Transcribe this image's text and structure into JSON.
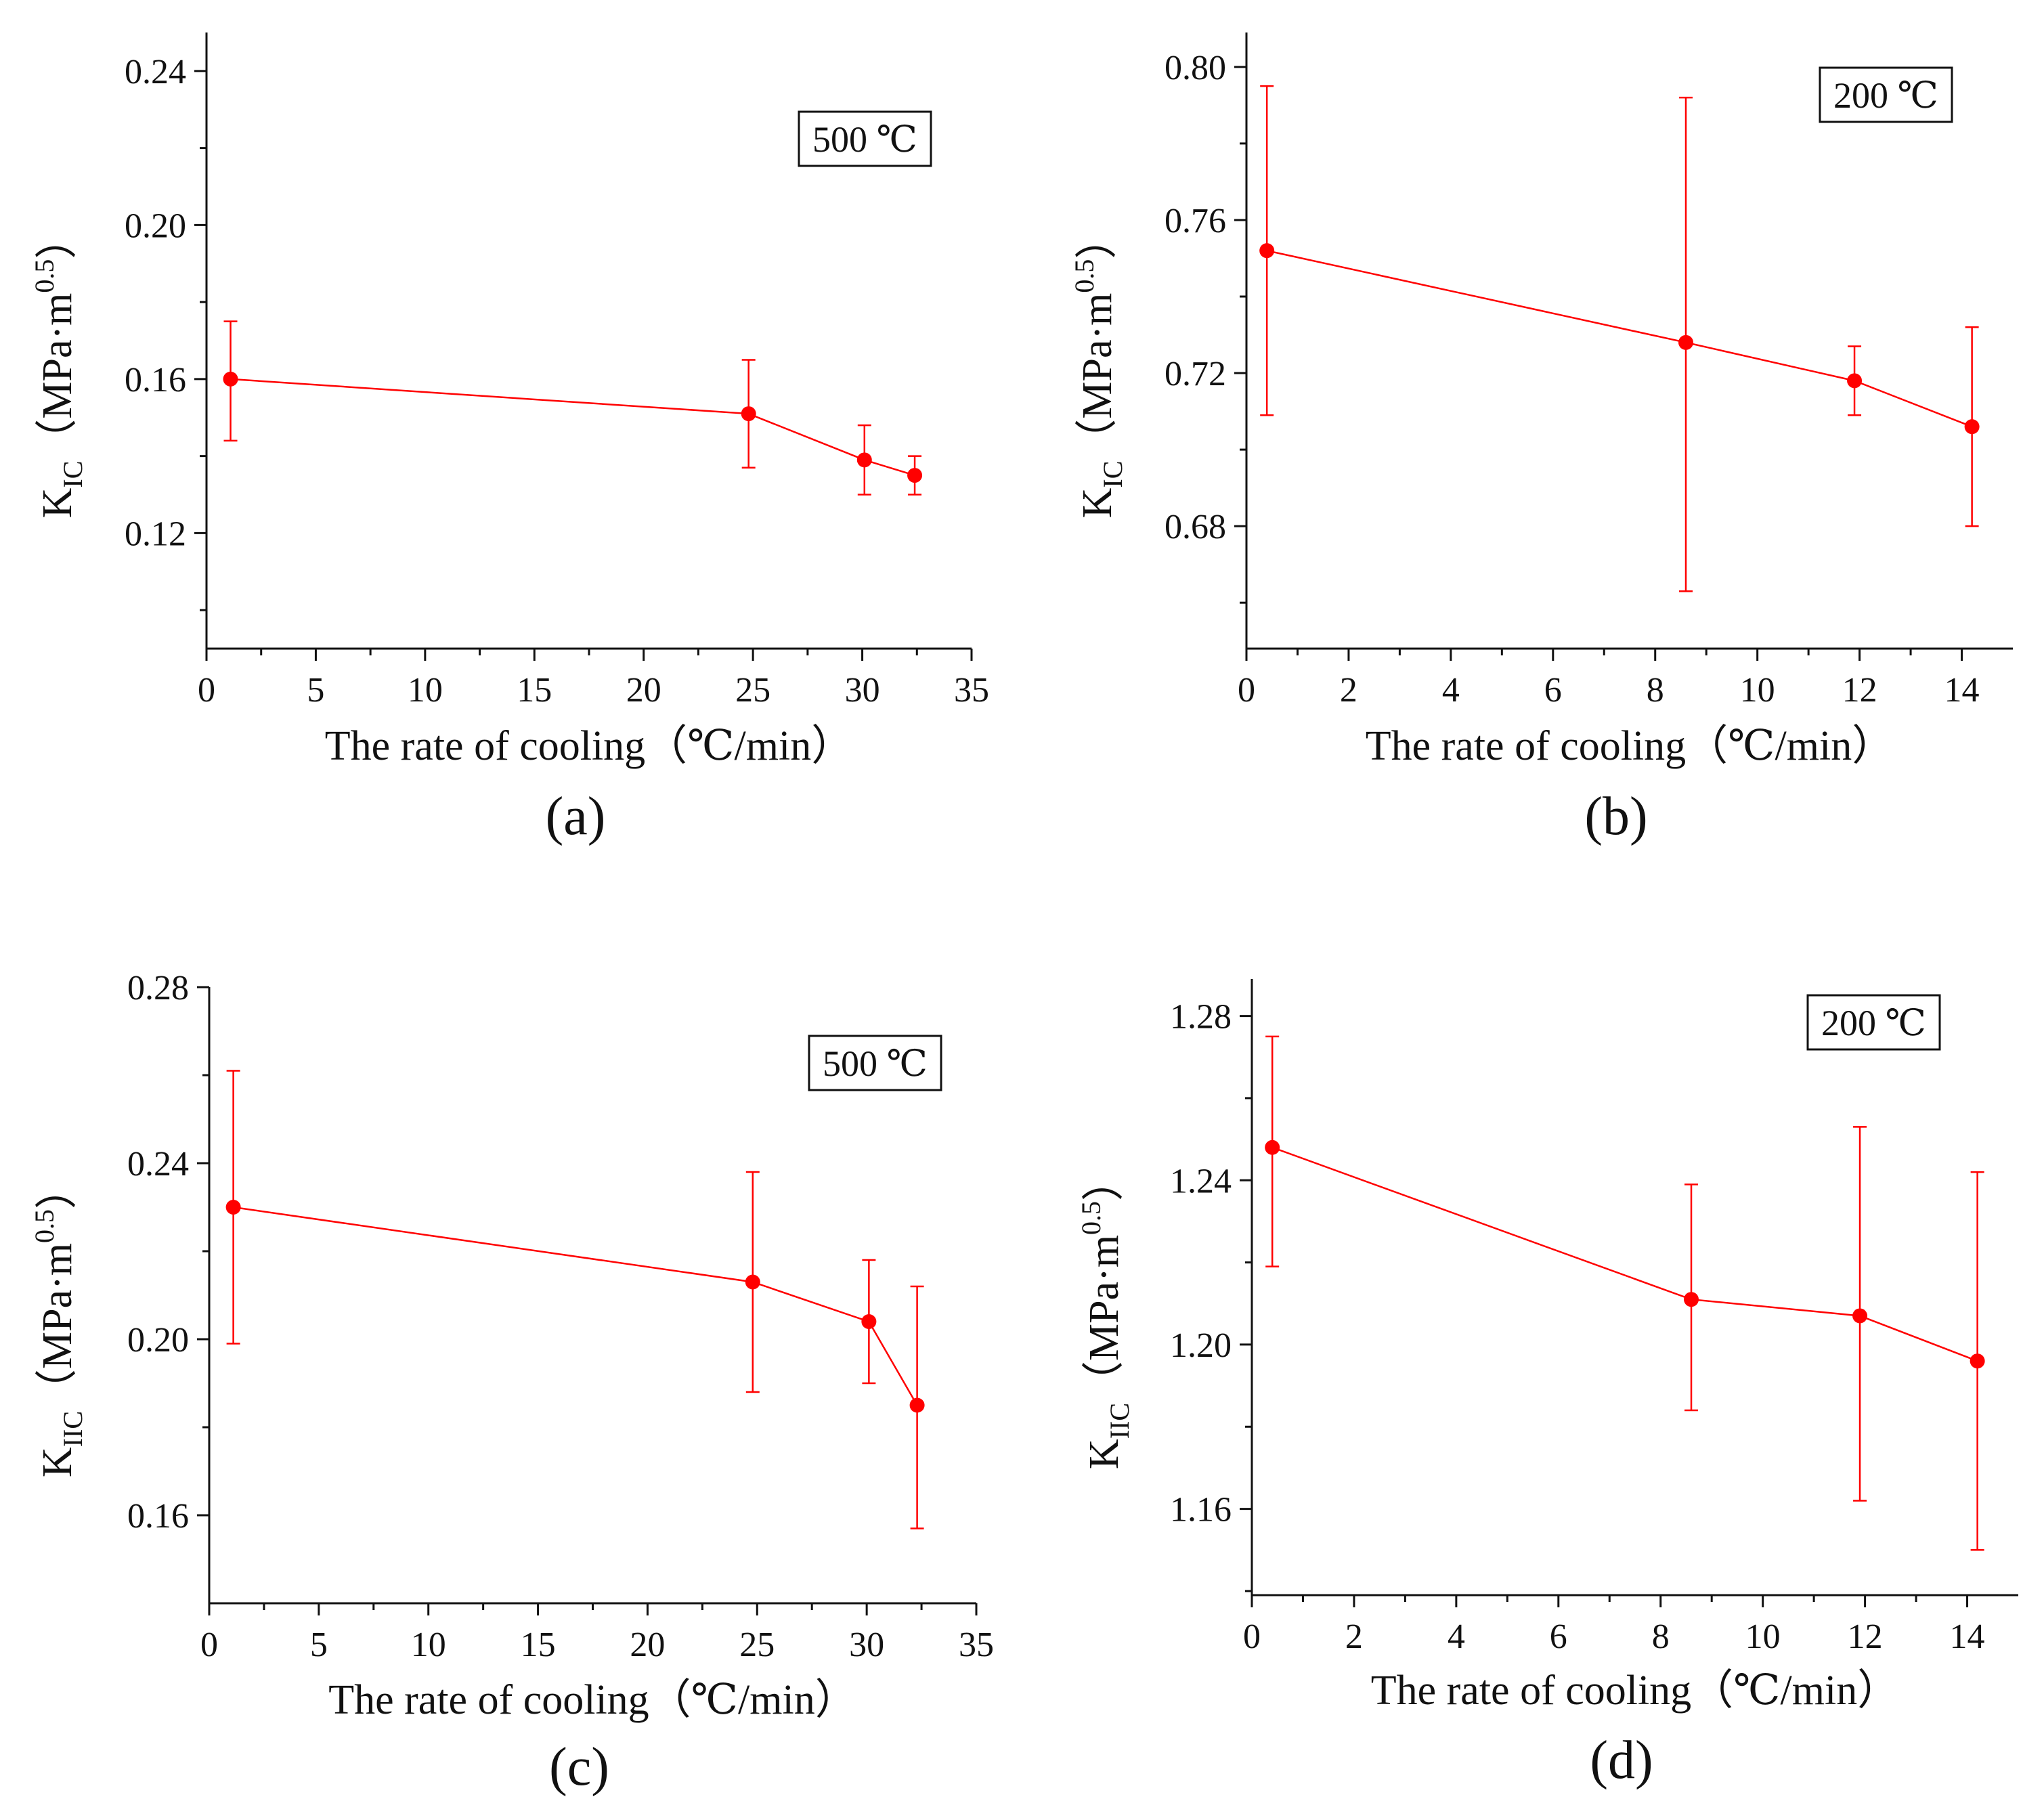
{
  "figure": {
    "accent_color": "#ff0000",
    "axis_color": "#111111"
  },
  "chart_data": [
    {
      "id": "a",
      "type": "line",
      "panel_label": "(a)",
      "box_label": "500 ℃",
      "ylabel_main": "K",
      "ylabel_sub": "IC",
      "ylabel_unit_pre": "（MPa·m",
      "ylabel_sup": "0.5",
      "ylabel_unit_post": "）",
      "xlabel": "The rate of cooling（℃/min）",
      "xlim": [
        0,
        35
      ],
      "ylim": [
        0.09,
        0.25
      ],
      "xticks": [
        0,
        5,
        10,
        15,
        20,
        25,
        30,
        35
      ],
      "xtick_labels": [
        "0",
        "5",
        "10",
        "15",
        "20",
        "25",
        "30",
        "35"
      ],
      "yticks": [
        0.12,
        0.16,
        0.2,
        0.24
      ],
      "ytick_labels": [
        "0.12",
        "0.16",
        "0.20",
        "0.24"
      ],
      "x": [
        1.1,
        24.8,
        30.1,
        32.4
      ],
      "y": [
        0.16,
        0.151,
        0.139,
        0.135
      ],
      "err_low": [
        0.144,
        0.137,
        0.13,
        0.13
      ],
      "err_high": [
        0.175,
        0.165,
        0.148,
        0.14
      ]
    },
    {
      "id": "b",
      "type": "line",
      "panel_label": "(b)",
      "box_label": "200 ℃",
      "ylabel_main": "K",
      "ylabel_sub": "IC",
      "ylabel_unit_pre": "（MPa·m",
      "ylabel_sup": "0.5",
      "ylabel_unit_post": "）",
      "xlabel": "The rate of cooling（℃/min）",
      "xlim": [
        0,
        15
      ],
      "ylim": [
        0.648,
        0.809
      ],
      "xticks": [
        0,
        2,
        4,
        6,
        8,
        10,
        12,
        14
      ],
      "xtick_labels": [
        "0",
        "2",
        "4",
        "6",
        "8",
        "10",
        "12",
        "14"
      ],
      "yticks": [
        0.68,
        0.72,
        0.76,
        0.8
      ],
      "ytick_labels": [
        "0.68",
        "0.72",
        "0.76",
        "0.80"
      ],
      "x": [
        0.4,
        8.6,
        11.9,
        14.2
      ],
      "y": [
        0.752,
        0.728,
        0.718,
        0.706
      ],
      "err_low": [
        0.709,
        0.663,
        0.709,
        0.68
      ],
      "err_high": [
        0.795,
        0.792,
        0.727,
        0.732
      ]
    },
    {
      "id": "c",
      "type": "line",
      "panel_label": "(c)",
      "box_label": "500 ℃",
      "ylabel_main": "K",
      "ylabel_sub": "IIC",
      "ylabel_unit_pre": "（MPa·m",
      "ylabel_sup": "0.5",
      "ylabel_unit_post": "）",
      "xlabel": "The rate of cooling（℃/min）",
      "xlim": [
        0,
        35
      ],
      "ylim": [
        0.14,
        0.28
      ],
      "xticks": [
        0,
        5,
        10,
        15,
        20,
        25,
        30,
        35
      ],
      "xtick_labels": [
        "0",
        "5",
        "10",
        "15",
        "20",
        "25",
        "30",
        "35"
      ],
      "yticks": [
        0.16,
        0.2,
        0.24,
        0.28
      ],
      "ytick_labels": [
        "0.16",
        "0.20",
        "0.24",
        "0.28"
      ],
      "x": [
        1.1,
        24.8,
        30.1,
        32.3
      ],
      "y": [
        0.23,
        0.213,
        0.204,
        0.185
      ],
      "err_low": [
        0.199,
        0.188,
        0.19,
        0.157
      ],
      "err_high": [
        0.261,
        0.238,
        0.218,
        0.212
      ]
    },
    {
      "id": "d",
      "type": "line",
      "panel_label": "(d)",
      "box_label": "200 ℃",
      "ylabel_main": "K",
      "ylabel_sub": "IIC",
      "ylabel_unit_pre": "（MPa·m",
      "ylabel_sup": "0.5",
      "ylabel_unit_post": "）",
      "xlabel": "The rate of cooling（℃/min）",
      "xlim": [
        0,
        15
      ],
      "ylim": [
        1.139,
        1.289
      ],
      "xticks": [
        0,
        2,
        4,
        6,
        8,
        10,
        12,
        14
      ],
      "xtick_labels": [
        "0",
        "2",
        "4",
        "6",
        "8",
        "10",
        "12",
        "14"
      ],
      "yticks": [
        1.16,
        1.2,
        1.24,
        1.28
      ],
      "ytick_labels": [
        "1.16",
        "1.20",
        "1.24",
        "1.28"
      ],
      "x": [
        0.4,
        8.6,
        11.9,
        14.2
      ],
      "y": [
        1.248,
        1.211,
        1.207,
        1.196
      ],
      "err_low": [
        1.219,
        1.184,
        1.162,
        1.15
      ],
      "err_high": [
        1.275,
        1.239,
        1.253,
        1.242
      ]
    }
  ]
}
